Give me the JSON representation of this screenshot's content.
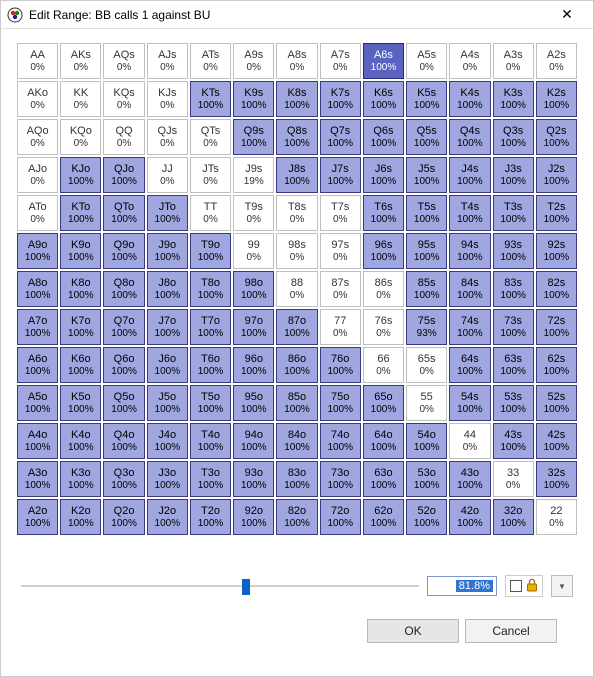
{
  "window": {
    "title": "Edit Range: BB calls 1 against BU"
  },
  "colors": {
    "white_bg": "#ffffff",
    "blue_bg": "#9fa6e0",
    "dark_bg": "#5a63c0"
  },
  "slider": {
    "value_display": "81.8%",
    "thumb_pos_pct": 56.5
  },
  "buttons": {
    "ok": "OK",
    "cancel": "Cancel"
  },
  "ranks": [
    "A",
    "K",
    "Q",
    "J",
    "T",
    "9",
    "8",
    "7",
    "6",
    "5",
    "4",
    "3",
    "2"
  ],
  "cells": [
    {
      "r": 0,
      "c": 0,
      "hand": "AA",
      "pct": "0%",
      "cls": "white"
    },
    {
      "r": 0,
      "c": 1,
      "hand": "AKs",
      "pct": "0%",
      "cls": "white"
    },
    {
      "r": 0,
      "c": 2,
      "hand": "AQs",
      "pct": "0%",
      "cls": "white"
    },
    {
      "r": 0,
      "c": 3,
      "hand": "AJs",
      "pct": "0%",
      "cls": "white"
    },
    {
      "r": 0,
      "c": 4,
      "hand": "ATs",
      "pct": "0%",
      "cls": "white"
    },
    {
      "r": 0,
      "c": 5,
      "hand": "A9s",
      "pct": "0%",
      "cls": "white"
    },
    {
      "r": 0,
      "c": 6,
      "hand": "A8s",
      "pct": "0%",
      "cls": "white"
    },
    {
      "r": 0,
      "c": 7,
      "hand": "A7s",
      "pct": "0%",
      "cls": "white"
    },
    {
      "r": 0,
      "c": 8,
      "hand": "A6s",
      "pct": "100%",
      "cls": "dark"
    },
    {
      "r": 0,
      "c": 9,
      "hand": "A5s",
      "pct": "0%",
      "cls": "white"
    },
    {
      "r": 0,
      "c": 10,
      "hand": "A4s",
      "pct": "0%",
      "cls": "white"
    },
    {
      "r": 0,
      "c": 11,
      "hand": "A3s",
      "pct": "0%",
      "cls": "white"
    },
    {
      "r": 0,
      "c": 12,
      "hand": "A2s",
      "pct": "0%",
      "cls": "white"
    },
    {
      "r": 1,
      "c": 0,
      "hand": "AKo",
      "pct": "0%",
      "cls": "white"
    },
    {
      "r": 1,
      "c": 1,
      "hand": "KK",
      "pct": "0%",
      "cls": "white"
    },
    {
      "r": 1,
      "c": 2,
      "hand": "KQs",
      "pct": "0%",
      "cls": "white"
    },
    {
      "r": 1,
      "c": 3,
      "hand": "KJs",
      "pct": "0%",
      "cls": "white"
    },
    {
      "r": 1,
      "c": 4,
      "hand": "KTs",
      "pct": "100%",
      "cls": "blue"
    },
    {
      "r": 1,
      "c": 5,
      "hand": "K9s",
      "pct": "100%",
      "cls": "blue"
    },
    {
      "r": 1,
      "c": 6,
      "hand": "K8s",
      "pct": "100%",
      "cls": "blue"
    },
    {
      "r": 1,
      "c": 7,
      "hand": "K7s",
      "pct": "100%",
      "cls": "blue"
    },
    {
      "r": 1,
      "c": 8,
      "hand": "K6s",
      "pct": "100%",
      "cls": "blue"
    },
    {
      "r": 1,
      "c": 9,
      "hand": "K5s",
      "pct": "100%",
      "cls": "blue"
    },
    {
      "r": 1,
      "c": 10,
      "hand": "K4s",
      "pct": "100%",
      "cls": "blue"
    },
    {
      "r": 1,
      "c": 11,
      "hand": "K3s",
      "pct": "100%",
      "cls": "blue"
    },
    {
      "r": 1,
      "c": 12,
      "hand": "K2s",
      "pct": "100%",
      "cls": "blue"
    },
    {
      "r": 2,
      "c": 0,
      "hand": "AQo",
      "pct": "0%",
      "cls": "white"
    },
    {
      "r": 2,
      "c": 1,
      "hand": "KQo",
      "pct": "0%",
      "cls": "white"
    },
    {
      "r": 2,
      "c": 2,
      "hand": "QQ",
      "pct": "0%",
      "cls": "white"
    },
    {
      "r": 2,
      "c": 3,
      "hand": "QJs",
      "pct": "0%",
      "cls": "white"
    },
    {
      "r": 2,
      "c": 4,
      "hand": "QTs",
      "pct": "0%",
      "cls": "white"
    },
    {
      "r": 2,
      "c": 5,
      "hand": "Q9s",
      "pct": "100%",
      "cls": "blue"
    },
    {
      "r": 2,
      "c": 6,
      "hand": "Q8s",
      "pct": "100%",
      "cls": "blue"
    },
    {
      "r": 2,
      "c": 7,
      "hand": "Q7s",
      "pct": "100%",
      "cls": "blue"
    },
    {
      "r": 2,
      "c": 8,
      "hand": "Q6s",
      "pct": "100%",
      "cls": "blue"
    },
    {
      "r": 2,
      "c": 9,
      "hand": "Q5s",
      "pct": "100%",
      "cls": "blue"
    },
    {
      "r": 2,
      "c": 10,
      "hand": "Q4s",
      "pct": "100%",
      "cls": "blue"
    },
    {
      "r": 2,
      "c": 11,
      "hand": "Q3s",
      "pct": "100%",
      "cls": "blue"
    },
    {
      "r": 2,
      "c": 12,
      "hand": "Q2s",
      "pct": "100%",
      "cls": "blue"
    },
    {
      "r": 3,
      "c": 0,
      "hand": "AJo",
      "pct": "0%",
      "cls": "white"
    },
    {
      "r": 3,
      "c": 1,
      "hand": "KJo",
      "pct": "100%",
      "cls": "blue"
    },
    {
      "r": 3,
      "c": 2,
      "hand": "QJo",
      "pct": "100%",
      "cls": "blue"
    },
    {
      "r": 3,
      "c": 3,
      "hand": "JJ",
      "pct": "0%",
      "cls": "white"
    },
    {
      "r": 3,
      "c": 4,
      "hand": "JTs",
      "pct": "0%",
      "cls": "white"
    },
    {
      "r": 3,
      "c": 5,
      "hand": "J9s",
      "pct": "19%",
      "cls": "white"
    },
    {
      "r": 3,
      "c": 6,
      "hand": "J8s",
      "pct": "100%",
      "cls": "blue"
    },
    {
      "r": 3,
      "c": 7,
      "hand": "J7s",
      "pct": "100%",
      "cls": "blue"
    },
    {
      "r": 3,
      "c": 8,
      "hand": "J6s",
      "pct": "100%",
      "cls": "blue"
    },
    {
      "r": 3,
      "c": 9,
      "hand": "J5s",
      "pct": "100%",
      "cls": "blue"
    },
    {
      "r": 3,
      "c": 10,
      "hand": "J4s",
      "pct": "100%",
      "cls": "blue"
    },
    {
      "r": 3,
      "c": 11,
      "hand": "J3s",
      "pct": "100%",
      "cls": "blue"
    },
    {
      "r": 3,
      "c": 12,
      "hand": "J2s",
      "pct": "100%",
      "cls": "blue"
    },
    {
      "r": 4,
      "c": 0,
      "hand": "ATo",
      "pct": "0%",
      "cls": "white"
    },
    {
      "r": 4,
      "c": 1,
      "hand": "KTo",
      "pct": "100%",
      "cls": "blue"
    },
    {
      "r": 4,
      "c": 2,
      "hand": "QTo",
      "pct": "100%",
      "cls": "blue"
    },
    {
      "r": 4,
      "c": 3,
      "hand": "JTo",
      "pct": "100%",
      "cls": "blue"
    },
    {
      "r": 4,
      "c": 4,
      "hand": "TT",
      "pct": "0%",
      "cls": "white"
    },
    {
      "r": 4,
      "c": 5,
      "hand": "T9s",
      "pct": "0%",
      "cls": "white"
    },
    {
      "r": 4,
      "c": 6,
      "hand": "T8s",
      "pct": "0%",
      "cls": "white"
    },
    {
      "r": 4,
      "c": 7,
      "hand": "T7s",
      "pct": "0%",
      "cls": "white"
    },
    {
      "r": 4,
      "c": 8,
      "hand": "T6s",
      "pct": "100%",
      "cls": "blue"
    },
    {
      "r": 4,
      "c": 9,
      "hand": "T5s",
      "pct": "100%",
      "cls": "blue"
    },
    {
      "r": 4,
      "c": 10,
      "hand": "T4s",
      "pct": "100%",
      "cls": "blue"
    },
    {
      "r": 4,
      "c": 11,
      "hand": "T3s",
      "pct": "100%",
      "cls": "blue"
    },
    {
      "r": 4,
      "c": 12,
      "hand": "T2s",
      "pct": "100%",
      "cls": "blue"
    },
    {
      "r": 5,
      "c": 0,
      "hand": "A9o",
      "pct": "100%",
      "cls": "blue"
    },
    {
      "r": 5,
      "c": 1,
      "hand": "K9o",
      "pct": "100%",
      "cls": "blue"
    },
    {
      "r": 5,
      "c": 2,
      "hand": "Q9o",
      "pct": "100%",
      "cls": "blue"
    },
    {
      "r": 5,
      "c": 3,
      "hand": "J9o",
      "pct": "100%",
      "cls": "blue"
    },
    {
      "r": 5,
      "c": 4,
      "hand": "T9o",
      "pct": "100%",
      "cls": "blue"
    },
    {
      "r": 5,
      "c": 5,
      "hand": "99",
      "pct": "0%",
      "cls": "white"
    },
    {
      "r": 5,
      "c": 6,
      "hand": "98s",
      "pct": "0%",
      "cls": "white"
    },
    {
      "r": 5,
      "c": 7,
      "hand": "97s",
      "pct": "0%",
      "cls": "white"
    },
    {
      "r": 5,
      "c": 8,
      "hand": "96s",
      "pct": "100%",
      "cls": "blue"
    },
    {
      "r": 5,
      "c": 9,
      "hand": "95s",
      "pct": "100%",
      "cls": "blue"
    },
    {
      "r": 5,
      "c": 10,
      "hand": "94s",
      "pct": "100%",
      "cls": "blue"
    },
    {
      "r": 5,
      "c": 11,
      "hand": "93s",
      "pct": "100%",
      "cls": "blue"
    },
    {
      "r": 5,
      "c": 12,
      "hand": "92s",
      "pct": "100%",
      "cls": "blue"
    },
    {
      "r": 6,
      "c": 0,
      "hand": "A8o",
      "pct": "100%",
      "cls": "blue"
    },
    {
      "r": 6,
      "c": 1,
      "hand": "K8o",
      "pct": "100%",
      "cls": "blue"
    },
    {
      "r": 6,
      "c": 2,
      "hand": "Q8o",
      "pct": "100%",
      "cls": "blue"
    },
    {
      "r": 6,
      "c": 3,
      "hand": "J8o",
      "pct": "100%",
      "cls": "blue"
    },
    {
      "r": 6,
      "c": 4,
      "hand": "T8o",
      "pct": "100%",
      "cls": "blue"
    },
    {
      "r": 6,
      "c": 5,
      "hand": "98o",
      "pct": "100%",
      "cls": "blue"
    },
    {
      "r": 6,
      "c": 6,
      "hand": "88",
      "pct": "0%",
      "cls": "white"
    },
    {
      "r": 6,
      "c": 7,
      "hand": "87s",
      "pct": "0%",
      "cls": "white"
    },
    {
      "r": 6,
      "c": 8,
      "hand": "86s",
      "pct": "0%",
      "cls": "white"
    },
    {
      "r": 6,
      "c": 9,
      "hand": "85s",
      "pct": "100%",
      "cls": "blue"
    },
    {
      "r": 6,
      "c": 10,
      "hand": "84s",
      "pct": "100%",
      "cls": "blue"
    },
    {
      "r": 6,
      "c": 11,
      "hand": "83s",
      "pct": "100%",
      "cls": "blue"
    },
    {
      "r": 6,
      "c": 12,
      "hand": "82s",
      "pct": "100%",
      "cls": "blue"
    },
    {
      "r": 7,
      "c": 0,
      "hand": "A7o",
      "pct": "100%",
      "cls": "blue"
    },
    {
      "r": 7,
      "c": 1,
      "hand": "K7o",
      "pct": "100%",
      "cls": "blue"
    },
    {
      "r": 7,
      "c": 2,
      "hand": "Q7o",
      "pct": "100%",
      "cls": "blue"
    },
    {
      "r": 7,
      "c": 3,
      "hand": "J7o",
      "pct": "100%",
      "cls": "blue"
    },
    {
      "r": 7,
      "c": 4,
      "hand": "T7o",
      "pct": "100%",
      "cls": "blue"
    },
    {
      "r": 7,
      "c": 5,
      "hand": "97o",
      "pct": "100%",
      "cls": "blue"
    },
    {
      "r": 7,
      "c": 6,
      "hand": "87o",
      "pct": "100%",
      "cls": "blue"
    },
    {
      "r": 7,
      "c": 7,
      "hand": "77",
      "pct": "0%",
      "cls": "white"
    },
    {
      "r": 7,
      "c": 8,
      "hand": "76s",
      "pct": "0%",
      "cls": "white"
    },
    {
      "r": 7,
      "c": 9,
      "hand": "75s",
      "pct": "93%",
      "cls": "blue"
    },
    {
      "r": 7,
      "c": 10,
      "hand": "74s",
      "pct": "100%",
      "cls": "blue"
    },
    {
      "r": 7,
      "c": 11,
      "hand": "73s",
      "pct": "100%",
      "cls": "blue"
    },
    {
      "r": 7,
      "c": 12,
      "hand": "72s",
      "pct": "100%",
      "cls": "blue"
    },
    {
      "r": 8,
      "c": 0,
      "hand": "A6o",
      "pct": "100%",
      "cls": "blue"
    },
    {
      "r": 8,
      "c": 1,
      "hand": "K6o",
      "pct": "100%",
      "cls": "blue"
    },
    {
      "r": 8,
      "c": 2,
      "hand": "Q6o",
      "pct": "100%",
      "cls": "blue"
    },
    {
      "r": 8,
      "c": 3,
      "hand": "J6o",
      "pct": "100%",
      "cls": "blue"
    },
    {
      "r": 8,
      "c": 4,
      "hand": "T6o",
      "pct": "100%",
      "cls": "blue"
    },
    {
      "r": 8,
      "c": 5,
      "hand": "96o",
      "pct": "100%",
      "cls": "blue"
    },
    {
      "r": 8,
      "c": 6,
      "hand": "86o",
      "pct": "100%",
      "cls": "blue"
    },
    {
      "r": 8,
      "c": 7,
      "hand": "76o",
      "pct": "100%",
      "cls": "blue"
    },
    {
      "r": 8,
      "c": 8,
      "hand": "66",
      "pct": "0%",
      "cls": "white"
    },
    {
      "r": 8,
      "c": 9,
      "hand": "65s",
      "pct": "0%",
      "cls": "white"
    },
    {
      "r": 8,
      "c": 10,
      "hand": "64s",
      "pct": "100%",
      "cls": "blue"
    },
    {
      "r": 8,
      "c": 11,
      "hand": "63s",
      "pct": "100%",
      "cls": "blue"
    },
    {
      "r": 8,
      "c": 12,
      "hand": "62s",
      "pct": "100%",
      "cls": "blue"
    },
    {
      "r": 9,
      "c": 0,
      "hand": "A5o",
      "pct": "100%",
      "cls": "blue"
    },
    {
      "r": 9,
      "c": 1,
      "hand": "K5o",
      "pct": "100%",
      "cls": "blue"
    },
    {
      "r": 9,
      "c": 2,
      "hand": "Q5o",
      "pct": "100%",
      "cls": "blue"
    },
    {
      "r": 9,
      "c": 3,
      "hand": "J5o",
      "pct": "100%",
      "cls": "blue"
    },
    {
      "r": 9,
      "c": 4,
      "hand": "T5o",
      "pct": "100%",
      "cls": "blue"
    },
    {
      "r": 9,
      "c": 5,
      "hand": "95o",
      "pct": "100%",
      "cls": "blue"
    },
    {
      "r": 9,
      "c": 6,
      "hand": "85o",
      "pct": "100%",
      "cls": "blue"
    },
    {
      "r": 9,
      "c": 7,
      "hand": "75o",
      "pct": "100%",
      "cls": "blue"
    },
    {
      "r": 9,
      "c": 8,
      "hand": "65o",
      "pct": "100%",
      "cls": "blue"
    },
    {
      "r": 9,
      "c": 9,
      "hand": "55",
      "pct": "0%",
      "cls": "white"
    },
    {
      "r": 9,
      "c": 10,
      "hand": "54s",
      "pct": "100%",
      "cls": "blue"
    },
    {
      "r": 9,
      "c": 11,
      "hand": "53s",
      "pct": "100%",
      "cls": "blue"
    },
    {
      "r": 9,
      "c": 12,
      "hand": "52s",
      "pct": "100%",
      "cls": "blue"
    },
    {
      "r": 10,
      "c": 0,
      "hand": "A4o",
      "pct": "100%",
      "cls": "blue"
    },
    {
      "r": 10,
      "c": 1,
      "hand": "K4o",
      "pct": "100%",
      "cls": "blue"
    },
    {
      "r": 10,
      "c": 2,
      "hand": "Q4o",
      "pct": "100%",
      "cls": "blue"
    },
    {
      "r": 10,
      "c": 3,
      "hand": "J4o",
      "pct": "100%",
      "cls": "blue"
    },
    {
      "r": 10,
      "c": 4,
      "hand": "T4o",
      "pct": "100%",
      "cls": "blue"
    },
    {
      "r": 10,
      "c": 5,
      "hand": "94o",
      "pct": "100%",
      "cls": "blue"
    },
    {
      "r": 10,
      "c": 6,
      "hand": "84o",
      "pct": "100%",
      "cls": "blue"
    },
    {
      "r": 10,
      "c": 7,
      "hand": "74o",
      "pct": "100%",
      "cls": "blue"
    },
    {
      "r": 10,
      "c": 8,
      "hand": "64o",
      "pct": "100%",
      "cls": "blue"
    },
    {
      "r": 10,
      "c": 9,
      "hand": "54o",
      "pct": "100%",
      "cls": "blue"
    },
    {
      "r": 10,
      "c": 10,
      "hand": "44",
      "pct": "0%",
      "cls": "white"
    },
    {
      "r": 10,
      "c": 11,
      "hand": "43s",
      "pct": "100%",
      "cls": "blue"
    },
    {
      "r": 10,
      "c": 12,
      "hand": "42s",
      "pct": "100%",
      "cls": "blue"
    },
    {
      "r": 11,
      "c": 0,
      "hand": "A3o",
      "pct": "100%",
      "cls": "blue"
    },
    {
      "r": 11,
      "c": 1,
      "hand": "K3o",
      "pct": "100%",
      "cls": "blue"
    },
    {
      "r": 11,
      "c": 2,
      "hand": "Q3o",
      "pct": "100%",
      "cls": "blue"
    },
    {
      "r": 11,
      "c": 3,
      "hand": "J3o",
      "pct": "100%",
      "cls": "blue"
    },
    {
      "r": 11,
      "c": 4,
      "hand": "T3o",
      "pct": "100%",
      "cls": "blue"
    },
    {
      "r": 11,
      "c": 5,
      "hand": "93o",
      "pct": "100%",
      "cls": "blue"
    },
    {
      "r": 11,
      "c": 6,
      "hand": "83o",
      "pct": "100%",
      "cls": "blue"
    },
    {
      "r": 11,
      "c": 7,
      "hand": "73o",
      "pct": "100%",
      "cls": "blue"
    },
    {
      "r": 11,
      "c": 8,
      "hand": "63o",
      "pct": "100%",
      "cls": "blue"
    },
    {
      "r": 11,
      "c": 9,
      "hand": "53o",
      "pct": "100%",
      "cls": "blue"
    },
    {
      "r": 11,
      "c": 10,
      "hand": "43o",
      "pct": "100%",
      "cls": "blue"
    },
    {
      "r": 11,
      "c": 11,
      "hand": "33",
      "pct": "0%",
      "cls": "white"
    },
    {
      "r": 11,
      "c": 12,
      "hand": "32s",
      "pct": "100%",
      "cls": "blue"
    },
    {
      "r": 12,
      "c": 0,
      "hand": "A2o",
      "pct": "100%",
      "cls": "blue"
    },
    {
      "r": 12,
      "c": 1,
      "hand": "K2o",
      "pct": "100%",
      "cls": "blue"
    },
    {
      "r": 12,
      "c": 2,
      "hand": "Q2o",
      "pct": "100%",
      "cls": "blue"
    },
    {
      "r": 12,
      "c": 3,
      "hand": "J2o",
      "pct": "100%",
      "cls": "blue"
    },
    {
      "r": 12,
      "c": 4,
      "hand": "T2o",
      "pct": "100%",
      "cls": "blue"
    },
    {
      "r": 12,
      "c": 5,
      "hand": "92o",
      "pct": "100%",
      "cls": "blue"
    },
    {
      "r": 12,
      "c": 6,
      "hand": "82o",
      "pct": "100%",
      "cls": "blue"
    },
    {
      "r": 12,
      "c": 7,
      "hand": "72o",
      "pct": "100%",
      "cls": "blue"
    },
    {
      "r": 12,
      "c": 8,
      "hand": "62o",
      "pct": "100%",
      "cls": "blue"
    },
    {
      "r": 12,
      "c": 9,
      "hand": "52o",
      "pct": "100%",
      "cls": "blue"
    },
    {
      "r": 12,
      "c": 10,
      "hand": "42o",
      "pct": "100%",
      "cls": "blue"
    },
    {
      "r": 12,
      "c": 11,
      "hand": "32o",
      "pct": "100%",
      "cls": "blue"
    },
    {
      "r": 12,
      "c": 12,
      "hand": "22",
      "pct": "0%",
      "cls": "white"
    }
  ]
}
